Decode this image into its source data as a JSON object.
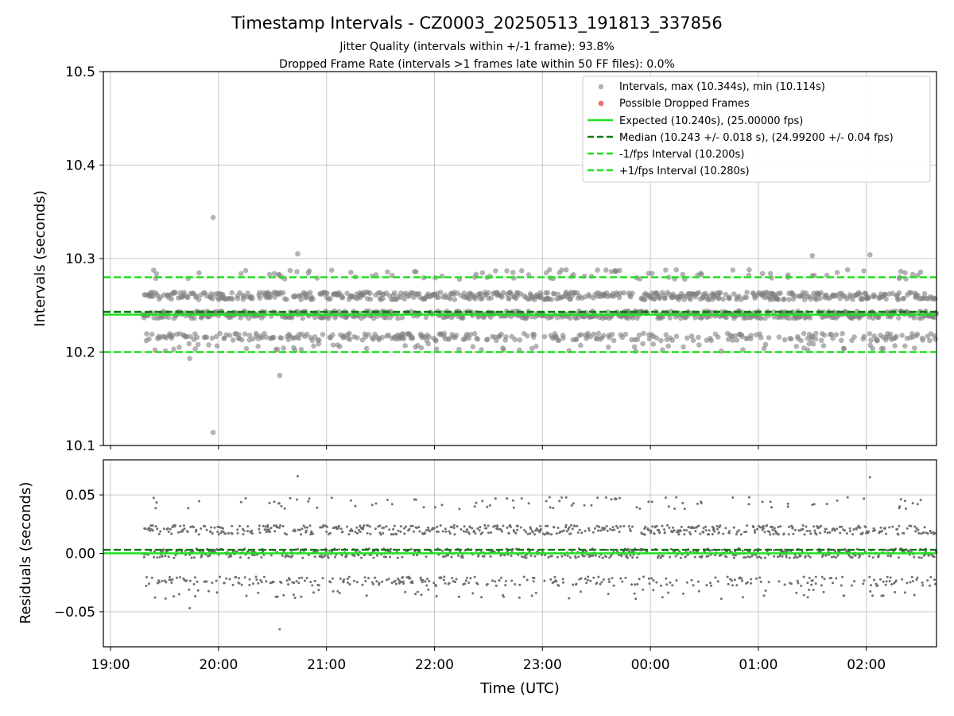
{
  "chart_data": {
    "type": "scatter",
    "title": "Timestamp Intervals - CZ0003_20250513_191813_337856",
    "subtitle_lines": [
      "Jitter Quality (intervals within +/-1 frame): 93.8%",
      "Dropped Frame Rate (intervals >1 frames late within 50 FF files): 0.0%"
    ],
    "xlabel": "Time (UTC)",
    "x_ticks": [
      "19:00",
      "20:00",
      "21:00",
      "22:00",
      "23:00",
      "00:00",
      "01:00",
      "02:00"
    ],
    "x_range": [
      "2025-05-13 18:56",
      "2025-05-14 02:39"
    ],
    "grid": true,
    "panels": [
      {
        "name": "intervals",
        "ylabel": "Intervals (seconds)",
        "ylim": [
          10.1,
          10.5
        ],
        "y_ticks": [
          "10.1",
          "10.2",
          "10.3",
          "10.4",
          "10.5"
        ],
        "series": [
          {
            "name": "Intervals, max (10.344s), min (10.114s)",
            "kind": "points",
            "color": "#808080",
            "max": 10.344,
            "min": 10.114,
            "levels": [
              10.216,
              10.24,
              10.26
            ]
          },
          {
            "name": "Possible Dropped Frames",
            "kind": "points",
            "color": "#f06c6c",
            "values": []
          },
          {
            "name": "Expected (10.240s), (25.00000 fps)",
            "kind": "hline",
            "value": 10.24,
            "color": "#1de21d",
            "style": "solid"
          },
          {
            "name": "Median (10.243 +/- 0.018 s), (24.99200 +/- 0.04 fps)",
            "kind": "hline",
            "value": 10.243,
            "color": "#0a7a0a",
            "style": "dashed"
          },
          {
            "name": "-1/fps Interval (10.200s)",
            "kind": "hline",
            "value": 10.2,
            "color": "#1de21d",
            "style": "dashed"
          },
          {
            "name": "+1/fps Interval (10.280s)",
            "kind": "hline",
            "value": 10.28,
            "color": "#1de21d",
            "style": "dashed"
          }
        ],
        "outliers": [
          {
            "x": "2025-05-13 19:57",
            "y": 10.344
          },
          {
            "x": "2025-05-13 19:57",
            "y": 10.114
          },
          {
            "x": "2025-05-13 20:34",
            "y": 10.175
          },
          {
            "x": "2025-05-13 19:44",
            "y": 10.193
          },
          {
            "x": "2025-05-13 20:44",
            "y": 10.305
          },
          {
            "x": "2025-05-14 02:02",
            "y": 10.304
          },
          {
            "x": "2025-05-14 01:30",
            "y": 10.303
          }
        ],
        "legend_position": "upper right"
      },
      {
        "name": "residuals",
        "ylabel": "Residuals (seconds)",
        "ylim": [
          -0.08,
          0.08
        ],
        "y_ticks": [
          "−0.05",
          "0.00",
          "0.05"
        ],
        "series": [
          {
            "kind": "points",
            "color": "#707070",
            "levels": [
              -0.024,
              0.0,
              0.02
            ]
          },
          {
            "kind": "hline",
            "value": 0.0,
            "color": "#1de21d",
            "style": "solid"
          },
          {
            "kind": "hline",
            "value": 0.003,
            "color": "#0a7a0a",
            "style": "dashed"
          }
        ],
        "outliers": [
          {
            "x": "2025-05-13 20:34",
            "y": -0.065
          },
          {
            "x": "2025-05-13 20:44",
            "y": 0.066
          },
          {
            "x": "2025-05-14 02:02",
            "y": 0.065
          },
          {
            "x": "2025-05-13 19:44",
            "y": -0.047
          }
        ]
      }
    ],
    "data_start": "2025-05-13 19:18",
    "data_end": "2025-05-14 02:39"
  }
}
